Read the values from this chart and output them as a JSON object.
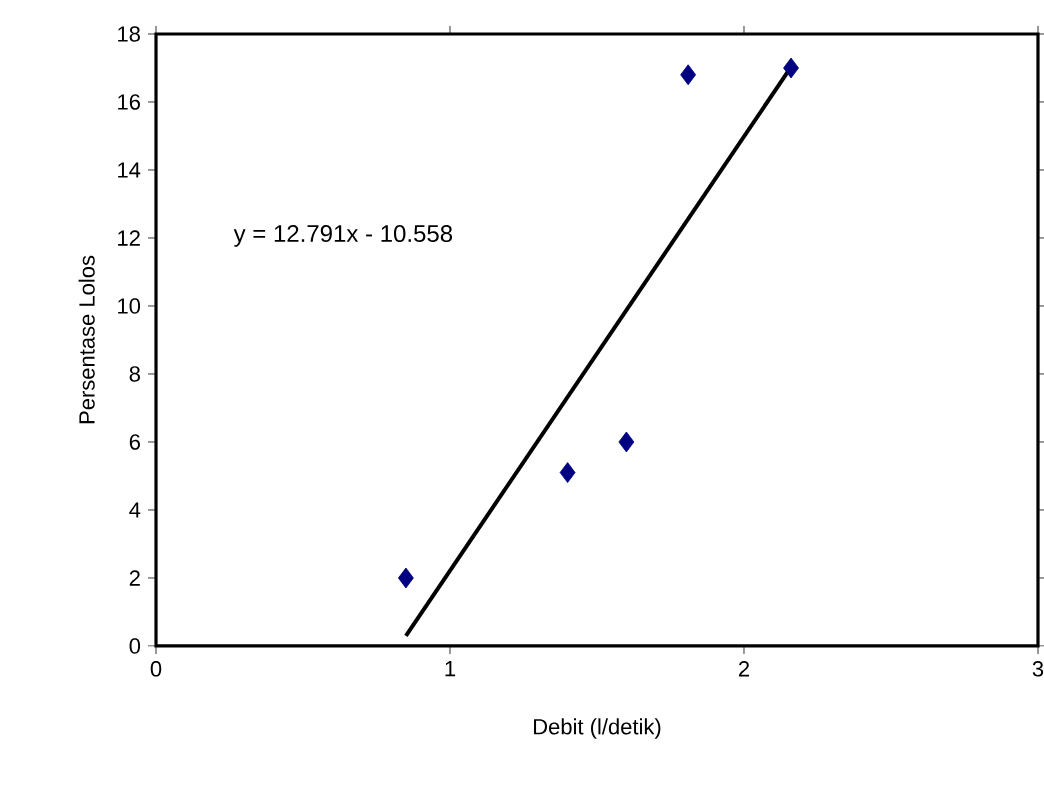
{
  "chart_data": {
    "type": "scatter",
    "xlabel": "Debit (l/detik)",
    "ylabel": "Persentase Lolos",
    "xlim": [
      0,
      3
    ],
    "xticks": [
      0,
      1,
      2,
      3
    ],
    "ylim": [
      0,
      18
    ],
    "yticks": [
      0,
      2,
      4,
      6,
      8,
      10,
      12,
      14,
      16,
      18
    ],
    "grid": false,
    "annotations": [
      "y = 12.791x - 10.558"
    ],
    "series": [
      {
        "marker": "diamond",
        "color": "#000080",
        "x": [
          0.85,
          1.4,
          1.6,
          1.81,
          2.16
        ],
        "values": [
          2.0,
          5.1,
          6.0,
          16.8,
          17.0
        ]
      },
      {
        "type": "line",
        "marker": "none",
        "color": "#000000",
        "x": [
          0.85,
          2.15
        ],
        "values": [
          0.3,
          16.9
        ]
      }
    ]
  }
}
